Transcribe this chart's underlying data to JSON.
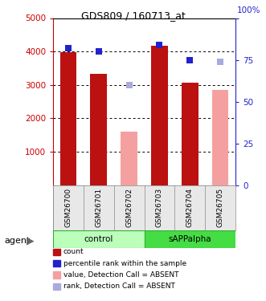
{
  "title": "GDS809 / 160713_at",
  "samples": [
    "GSM26700",
    "GSM26701",
    "GSM26702",
    "GSM26703",
    "GSM26704",
    "GSM26705"
  ],
  "bar_values": [
    3970,
    3320,
    1600,
    4160,
    3060,
    2860
  ],
  "bar_absent": [
    false,
    false,
    true,
    false,
    false,
    true
  ],
  "rank_values": [
    82,
    80,
    60,
    84,
    75,
    74
  ],
  "rank_absent": [
    false,
    false,
    true,
    false,
    false,
    true
  ],
  "bar_color_present": "#bb1111",
  "bar_color_absent": "#f5a0a0",
  "rank_color_present": "#2222cc",
  "rank_color_absent": "#aaaadd",
  "ylim_left": [
    0,
    5000
  ],
  "ylim_right": [
    0,
    100
  ],
  "yticks_left": [
    1000,
    2000,
    3000,
    4000,
    5000
  ],
  "yticks_right": [
    0,
    25,
    50,
    75,
    100
  ],
  "ytick_right_labels": [
    "0",
    "25",
    "50",
    "75",
    ""
  ],
  "groups": [
    {
      "label": "control",
      "start": 0,
      "end": 3,
      "color": "#bbffbb"
    },
    {
      "label": "sAPPalpha",
      "start": 3,
      "end": 6,
      "color": "#44dd44"
    }
  ],
  "tick_label_color_left": "#cc0000",
  "tick_label_color_right": "#2222cc",
  "grid_color": "#000000",
  "bar_width": 0.55,
  "rank_marker_size": 6,
  "legend_items": [
    {
      "label": "count",
      "color": "#bb1111",
      "type": "square"
    },
    {
      "label": "percentile rank within the sample",
      "color": "#2222cc",
      "type": "square"
    },
    {
      "label": "value, Detection Call = ABSENT",
      "color": "#f5a0a0",
      "type": "square"
    },
    {
      "label": "rank, Detection Call = ABSENT",
      "color": "#aaaadd",
      "type": "square"
    }
  ]
}
